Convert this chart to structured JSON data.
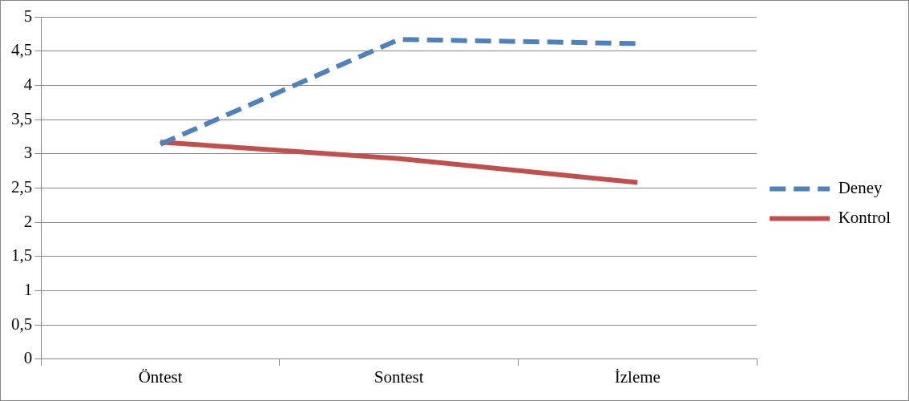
{
  "chart_data": {
    "type": "line",
    "categories": [
      "Öntest",
      "Sontest",
      "İzleme"
    ],
    "series": [
      {
        "name": "Deney",
        "color": "#4f81bd",
        "values": [
          3.14,
          4.67,
          4.61
        ],
        "line_style": "dashed"
      },
      {
        "name": "Kontrol",
        "color": "#c0504d",
        "values": [
          3.17,
          2.93,
          2.58
        ],
        "line_style": "solid"
      }
    ],
    "ylim": [
      0,
      5
    ],
    "yticks": [
      0,
      {
        "value": 0.5,
        "label": "0,5"
      },
      1,
      {
        "value": 1.5,
        "label": "1,5"
      },
      2,
      {
        "value": 2.5,
        "label": "2,5"
      },
      3,
      {
        "value": 3.5,
        "label": "3,5"
      },
      4,
      {
        "value": 4.5,
        "label": "4,5"
      },
      5
    ],
    "grid": "y",
    "legend": "right",
    "marker": "none"
  }
}
